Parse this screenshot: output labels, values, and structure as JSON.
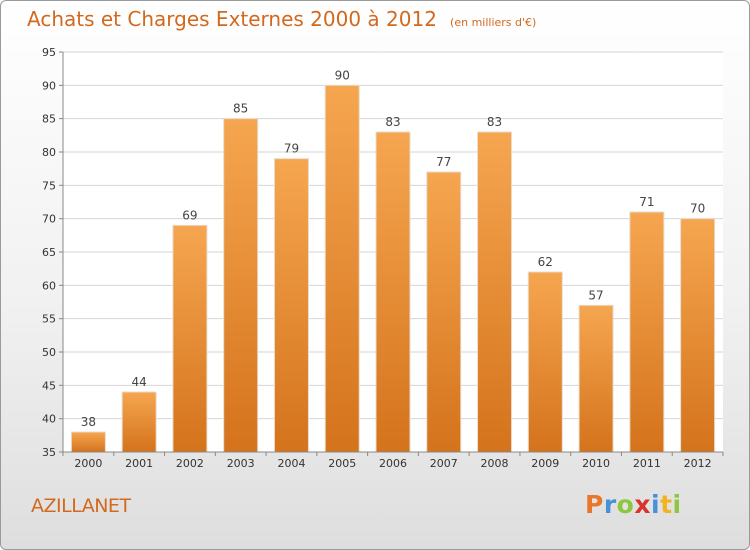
{
  "title": "Achats et Charges Externes 2000 à 2012",
  "subtitle": "(en milliers d'€)",
  "commune": "AZILLANET",
  "brand": {
    "letters": [
      "P",
      "r",
      "o",
      "x",
      "i",
      "t",
      "i"
    ],
    "colors": [
      "#e8762c",
      "#4a90d9",
      "#8dc63f",
      "#d9342b",
      "#4a90d9",
      "#f0b323",
      "#8dc63f"
    ]
  },
  "colors": {
    "bar_light": "#f6a650",
    "bar_dark": "#d4731c",
    "accent": "#d2691e"
  },
  "chart_data": {
    "type": "bar",
    "title": "Achats et Charges Externes 2000 à 2012",
    "subtitle": "(en milliers d'€)",
    "categories": [
      "2000",
      "2001",
      "2002",
      "2003",
      "2004",
      "2005",
      "2006",
      "2007",
      "2008",
      "2009",
      "2010",
      "2011",
      "2012"
    ],
    "values": [
      38,
      44,
      69,
      85,
      79,
      90,
      83,
      77,
      83,
      62,
      57,
      71,
      70
    ],
    "ylim": [
      35,
      95
    ],
    "yticks": [
      35,
      40,
      45,
      50,
      55,
      60,
      65,
      70,
      75,
      80,
      85,
      90,
      95
    ],
    "grid": true,
    "xlabel": "",
    "ylabel": ""
  }
}
